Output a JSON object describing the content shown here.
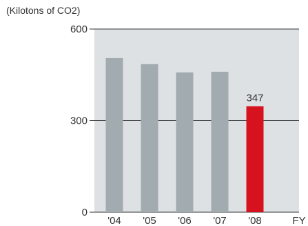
{
  "chart_data": {
    "type": "bar",
    "unit_label": "(Kilotons of CO2)",
    "categories": [
      "'04",
      "'05",
      "'06",
      "'07",
      "'08"
    ],
    "values": [
      505,
      485,
      458,
      460,
      347
    ],
    "xlabel": "FY",
    "ylabel": "",
    "ylim": [
      0,
      600
    ],
    "yticks": [
      "0",
      "300",
      "600"
    ],
    "grid": true,
    "data_labels": [
      null,
      null,
      null,
      null,
      "347"
    ],
    "colors": {
      "bar": "#a2acb0",
      "highlight_bar": "#d7121f",
      "plot_background": "#dde1e3",
      "gridline": "#333333"
    }
  }
}
